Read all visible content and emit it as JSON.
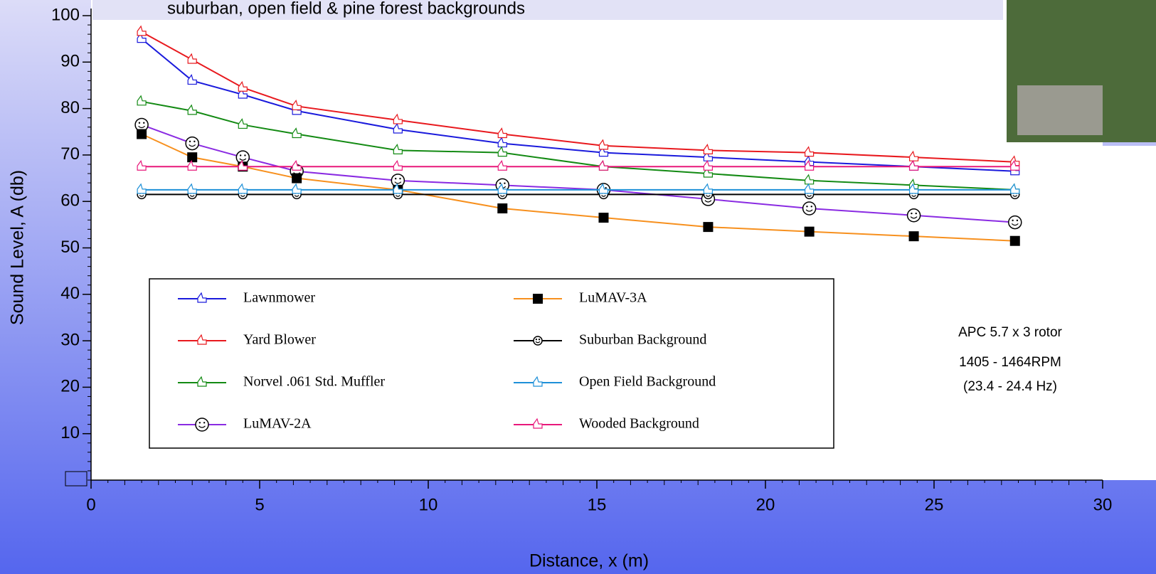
{
  "chart_data": {
    "type": "line",
    "title": "suburban, open field & pine forest backgrounds",
    "x_label": "Distance, x (m)",
    "y_label": "Sound Level, A (db)",
    "annotations": [
      "APC 5.7 x 3 rotor",
      "1405 - 1464RPM",
      "(23.4 - 24.4 Hz)"
    ],
    "x": [
      1.5,
      3,
      4.5,
      6.1,
      9.1,
      12.2,
      15.2,
      18.3,
      21.3,
      24.4,
      27.4
    ],
    "xlim": [
      0,
      30
    ],
    "xticks": [
      0,
      5,
      10,
      15,
      20,
      25,
      30
    ],
    "ylim": [
      0,
      100
    ],
    "yticks": [
      10,
      20,
      30,
      40,
      50,
      60,
      70,
      80,
      90,
      100
    ],
    "grid": false,
    "series": [
      {
        "name": "Lawnmower",
        "color": "#1a1adc",
        "marker": "icon",
        "values": [
          95,
          86,
          83,
          79.5,
          75.5,
          72.5,
          70.5,
          69.5,
          68.5,
          67.5,
          66.5
        ]
      },
      {
        "name": "Yard Blower",
        "color": "#e8191e",
        "marker": "icon",
        "values": [
          96.5,
          90.5,
          84.5,
          80.5,
          77.5,
          74.5,
          72,
          71,
          70.5,
          69.5,
          68.5
        ]
      },
      {
        "name": "Norvel .061 Std. Muffler",
        "color": "#138a13",
        "marker": "icon",
        "values": [
          81.5,
          79.5,
          76.5,
          74.5,
          71,
          70.5,
          67.5,
          66,
          64.5,
          63.5,
          62.5
        ]
      },
      {
        "name": "LuMAV-2A",
        "color": "#8a2be2",
        "marker": "smiley",
        "values": [
          76.5,
          72.5,
          69.5,
          66.5,
          64.5,
          63.5,
          62.5,
          60.5,
          58.5,
          57,
          55.5
        ]
      },
      {
        "name": "LuMAV-3A",
        "color": "#f7901e",
        "marker": "square",
        "values": [
          74.5,
          69.5,
          67.5,
          65,
          62.5,
          58.5,
          56.5,
          54.5,
          53.5,
          52.5,
          51.5
        ]
      },
      {
        "name": "Suburban Background",
        "color": "#000000",
        "marker": "smiley-small",
        "values": [
          61.5,
          61.5,
          61.5,
          61.5,
          61.5,
          61.5,
          61.5,
          61.5,
          61.5,
          61.5,
          61.5
        ]
      },
      {
        "name": "Open Field Background",
        "color": "#1e90d8",
        "marker": "icon",
        "values": [
          62.5,
          62.5,
          62.5,
          62.5,
          62.5,
          62.5,
          62.5,
          62.5,
          62.5,
          62.5,
          62.5
        ]
      },
      {
        "name": "Wooded Background",
        "color": "#e8187a",
        "marker": "icon",
        "values": [
          67.5,
          67.5,
          67.5,
          67.5,
          67.5,
          67.5,
          67.5,
          67.5,
          67.5,
          67.5,
          67.5
        ]
      }
    ]
  }
}
